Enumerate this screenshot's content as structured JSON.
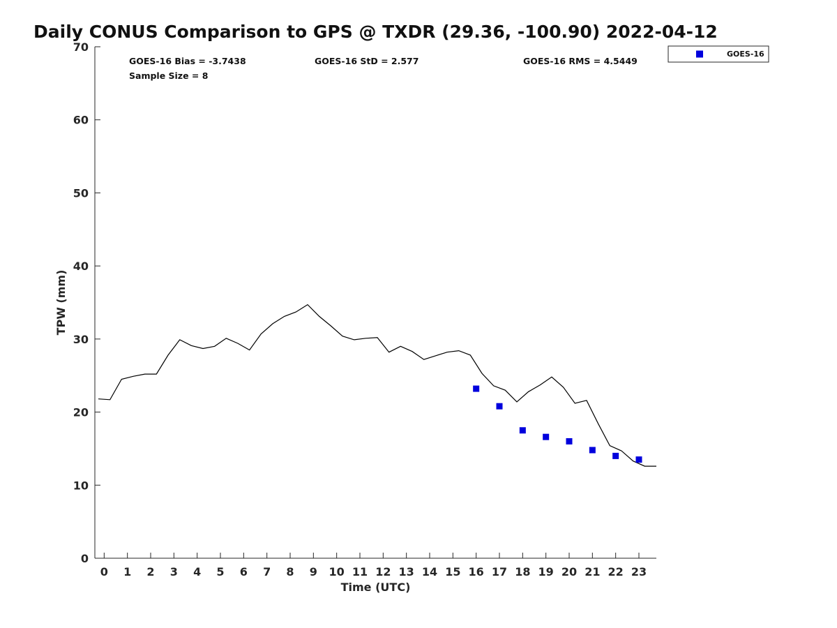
{
  "chart_data": {
    "type": "scatter",
    "title": "Daily CONUS Comparison to GPS @ TXDR (29.36, -100.90) 2022-04-12",
    "xlabel": "Time (UTC)",
    "ylabel": "TPW (mm)",
    "xlim": [
      -0.4,
      23.75
    ],
    "ylim": [
      0,
      70
    ],
    "xticks": [
      "0",
      "1",
      "2",
      "3",
      "4",
      "5",
      "6",
      "7",
      "8",
      "9",
      "10",
      "11",
      "12",
      "13",
      "14",
      "15",
      "16",
      "17",
      "18",
      "19",
      "20",
      "21",
      "22",
      "23"
    ],
    "yticks": [
      "0",
      "10",
      "20",
      "30",
      "40",
      "50",
      "60",
      "70"
    ],
    "grid": false,
    "legend_position": "top-right (outside plot)",
    "stats": {
      "bias": "GOES-16 Bias = -3.7438",
      "std": "GOES-16 StD = 2.577",
      "rms": "GOES-16 RMS = 4.5449",
      "sample": "Sample Size = 8"
    },
    "series": [
      {
        "kind": "line",
        "color": "#000000",
        "x": [
          -0.25,
          0.25,
          0.75,
          1.25,
          1.75,
          2.25,
          2.75,
          3.25,
          3.75,
          4.25,
          4.75,
          5.25,
          5.75,
          6.25,
          6.75,
          7.25,
          7.75,
          8.25,
          8.75,
          9.25,
          9.75,
          10.25,
          10.75,
          11.25,
          11.75,
          12.25,
          12.75,
          13.25,
          13.75,
          14.25,
          14.75,
          15.25,
          15.75,
          16.25,
          16.75,
          17.25,
          17.75,
          18.25,
          18.75,
          19.25,
          19.75,
          20.25,
          20.75,
          21.25,
          21.75,
          22.25,
          22.75,
          23.25,
          23.75
        ],
        "values": [
          21.8,
          21.7,
          24.5,
          24.9,
          25.2,
          25.2,
          27.8,
          29.9,
          29.1,
          28.7,
          29.0,
          30.1,
          29.4,
          28.5,
          30.7,
          32.1,
          33.1,
          33.7,
          34.7,
          33.1,
          31.8,
          30.4,
          29.9,
          30.1,
          30.2,
          28.2,
          29.0,
          28.3,
          27.2,
          27.7,
          28.2,
          28.4,
          27.8,
          25.3,
          23.6,
          23.0,
          21.4,
          22.8,
          23.7,
          24.8,
          23.4,
          21.2,
          21.6,
          18.4,
          15.4,
          14.7,
          13.3,
          12.6,
          12.6
        ]
      },
      {
        "kind": "scatter",
        "name": "GOES-16",
        "color": "#0000dd",
        "x": [
          16,
          17,
          18,
          19,
          20,
          21,
          22,
          23
        ],
        "values": [
          23.2,
          20.8,
          17.5,
          16.6,
          16.0,
          14.8,
          14.0,
          13.5
        ]
      }
    ]
  }
}
